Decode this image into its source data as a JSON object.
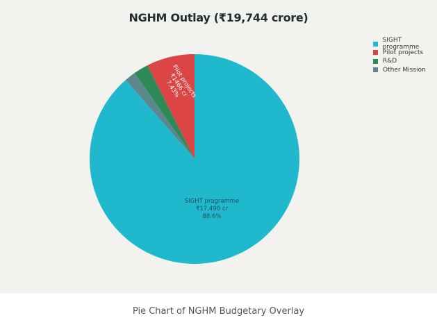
{
  "chart_data": {
    "type": "pie",
    "title": "NGHM Outlay (₹19,744 crore)",
    "categories": [
      "SIGHT programme",
      "Pilot projects",
      "R&D",
      "Other Mission"
    ],
    "values": [
      17490,
      1466,
      450,
      338
    ],
    "percentages": [
      88.6,
      7.43,
      2.28,
      1.71
    ],
    "colors": [
      "#1fb8cd",
      "#db4545",
      "#2e8b57",
      "#5d878f"
    ],
    "slice_labels": [
      {
        "lines": [
          "SIGHT programme",
          "₹17,490 cr",
          "88.6%"
        ]
      },
      {
        "lines": [
          "Pilot projects",
          "₹1466 cr",
          "7.43%"
        ]
      }
    ],
    "legend_position": "top-right",
    "start_angle_deg": 0,
    "direction": "counterclockwise"
  },
  "legend": {
    "items": [
      {
        "label": "SIGHT programme",
        "color": "#1fb8cd"
      },
      {
        "label": "Pilot projects",
        "color": "#db4545"
      },
      {
        "label": "R&D",
        "color": "#2e8b57"
      },
      {
        "label": "Other Mission",
        "color": "#5d878f"
      }
    ]
  },
  "caption": "Pie Chart of NGHM Budgetary Overlay"
}
